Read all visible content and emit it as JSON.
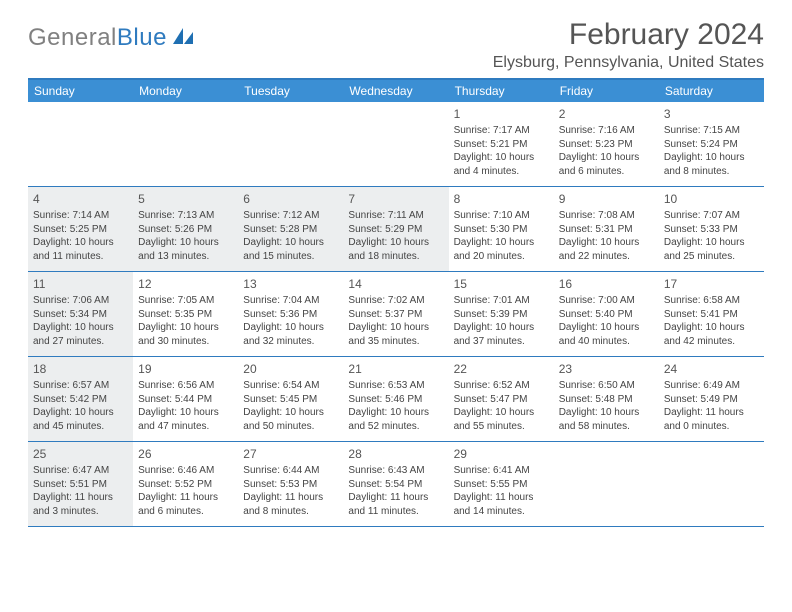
{
  "logo": {
    "gray": "General",
    "blue": "Blue"
  },
  "title": "February 2024",
  "location": "Elysburg, Pennsylvania, United States",
  "colors": {
    "header_bar": "#3b8fd4",
    "rule": "#2f7bbf",
    "shade": "#eceeef",
    "text": "#444444"
  },
  "dow": [
    "Sunday",
    "Monday",
    "Tuesday",
    "Wednesday",
    "Thursday",
    "Friday",
    "Saturday"
  ],
  "weeks": [
    [
      {
        "n": "",
        "shade": false
      },
      {
        "n": "",
        "shade": false
      },
      {
        "n": "",
        "shade": false
      },
      {
        "n": "",
        "shade": false
      },
      {
        "n": "1",
        "sr": "7:17 AM",
        "ss": "5:21 PM",
        "dl": "10 hours and 4 minutes.",
        "shade": false
      },
      {
        "n": "2",
        "sr": "7:16 AM",
        "ss": "5:23 PM",
        "dl": "10 hours and 6 minutes.",
        "shade": false
      },
      {
        "n": "3",
        "sr": "7:15 AM",
        "ss": "5:24 PM",
        "dl": "10 hours and 8 minutes.",
        "shade": false
      }
    ],
    [
      {
        "n": "4",
        "sr": "7:14 AM",
        "ss": "5:25 PM",
        "dl": "10 hours and 11 minutes.",
        "shade": true
      },
      {
        "n": "5",
        "sr": "7:13 AM",
        "ss": "5:26 PM",
        "dl": "10 hours and 13 minutes.",
        "shade": true
      },
      {
        "n": "6",
        "sr": "7:12 AM",
        "ss": "5:28 PM",
        "dl": "10 hours and 15 minutes.",
        "shade": true
      },
      {
        "n": "7",
        "sr": "7:11 AM",
        "ss": "5:29 PM",
        "dl": "10 hours and 18 minutes.",
        "shade": true
      },
      {
        "n": "8",
        "sr": "7:10 AM",
        "ss": "5:30 PM",
        "dl": "10 hours and 20 minutes.",
        "shade": false
      },
      {
        "n": "9",
        "sr": "7:08 AM",
        "ss": "5:31 PM",
        "dl": "10 hours and 22 minutes.",
        "shade": false
      },
      {
        "n": "10",
        "sr": "7:07 AM",
        "ss": "5:33 PM",
        "dl": "10 hours and 25 minutes.",
        "shade": false
      }
    ],
    [
      {
        "n": "11",
        "sr": "7:06 AM",
        "ss": "5:34 PM",
        "dl": "10 hours and 27 minutes.",
        "shade": true
      },
      {
        "n": "12",
        "sr": "7:05 AM",
        "ss": "5:35 PM",
        "dl": "10 hours and 30 minutes.",
        "shade": false
      },
      {
        "n": "13",
        "sr": "7:04 AM",
        "ss": "5:36 PM",
        "dl": "10 hours and 32 minutes.",
        "shade": false
      },
      {
        "n": "14",
        "sr": "7:02 AM",
        "ss": "5:37 PM",
        "dl": "10 hours and 35 minutes.",
        "shade": false
      },
      {
        "n": "15",
        "sr": "7:01 AM",
        "ss": "5:39 PM",
        "dl": "10 hours and 37 minutes.",
        "shade": false
      },
      {
        "n": "16",
        "sr": "7:00 AM",
        "ss": "5:40 PM",
        "dl": "10 hours and 40 minutes.",
        "shade": false
      },
      {
        "n": "17",
        "sr": "6:58 AM",
        "ss": "5:41 PM",
        "dl": "10 hours and 42 minutes.",
        "shade": false
      }
    ],
    [
      {
        "n": "18",
        "sr": "6:57 AM",
        "ss": "5:42 PM",
        "dl": "10 hours and 45 minutes.",
        "shade": true
      },
      {
        "n": "19",
        "sr": "6:56 AM",
        "ss": "5:44 PM",
        "dl": "10 hours and 47 minutes.",
        "shade": false
      },
      {
        "n": "20",
        "sr": "6:54 AM",
        "ss": "5:45 PM",
        "dl": "10 hours and 50 minutes.",
        "shade": false
      },
      {
        "n": "21",
        "sr": "6:53 AM",
        "ss": "5:46 PM",
        "dl": "10 hours and 52 minutes.",
        "shade": false
      },
      {
        "n": "22",
        "sr": "6:52 AM",
        "ss": "5:47 PM",
        "dl": "10 hours and 55 minutes.",
        "shade": false
      },
      {
        "n": "23",
        "sr": "6:50 AM",
        "ss": "5:48 PM",
        "dl": "10 hours and 58 minutes.",
        "shade": false
      },
      {
        "n": "24",
        "sr": "6:49 AM",
        "ss": "5:49 PM",
        "dl": "11 hours and 0 minutes.",
        "shade": false
      }
    ],
    [
      {
        "n": "25",
        "sr": "6:47 AM",
        "ss": "5:51 PM",
        "dl": "11 hours and 3 minutes.",
        "shade": true
      },
      {
        "n": "26",
        "sr": "6:46 AM",
        "ss": "5:52 PM",
        "dl": "11 hours and 6 minutes.",
        "shade": false
      },
      {
        "n": "27",
        "sr": "6:44 AM",
        "ss": "5:53 PM",
        "dl": "11 hours and 8 minutes.",
        "shade": false
      },
      {
        "n": "28",
        "sr": "6:43 AM",
        "ss": "5:54 PM",
        "dl": "11 hours and 11 minutes.",
        "shade": false
      },
      {
        "n": "29",
        "sr": "6:41 AM",
        "ss": "5:55 PM",
        "dl": "11 hours and 14 minutes.",
        "shade": false
      },
      {
        "n": "",
        "shade": false
      },
      {
        "n": "",
        "shade": false
      }
    ]
  ],
  "labels": {
    "sunrise": "Sunrise: ",
    "sunset": "Sunset: ",
    "daylight": "Daylight: "
  }
}
